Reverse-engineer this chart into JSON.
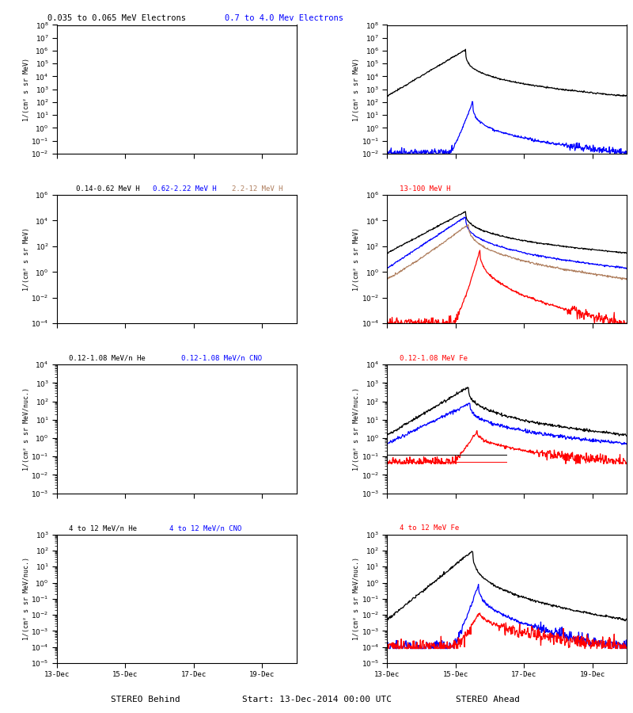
{
  "titles": {
    "r1l_black": "0.035 to 0.065 MeV Electrons",
    "r1l_blue": "0.7 to 4.0 Mev Electrons",
    "r2l_black": "0.14-0.62 MeV H",
    "r2l_blue": "0.62-2.22 MeV H",
    "r2l_tan": "2.2-12 MeV H",
    "r2r_red": "13-100 MeV H",
    "r3l_black": "0.12-1.08 MeV/n He",
    "r3l_blue": "0.12-1.08 MeV/n CNO",
    "r3r_red": "0.12-1.08 MeV Fe",
    "r4l_black": "4 to 12 MeV/n He",
    "r4l_blue": "4 to 12 MeV/n CNO",
    "r4r_red": "4 to 12 MeV Fe"
  },
  "ylabels": {
    "electrons": "1/(cm² s sr MeV)",
    "protons": "1/(cm² s sr MeV)",
    "heavy": "1/(cm² s sr MeV/nuc.)"
  },
  "xlabels": {
    "left": "STEREO Behind",
    "center": "Start: 13-Dec-2014 00:00 UTC",
    "right": "STEREO Ahead"
  },
  "xtick_labels": [
    "13-Dec",
    "15-Dec",
    "17-Dec",
    "19-Dec"
  ],
  "xtick_pos": [
    0,
    48,
    96,
    144
  ],
  "ylims": {
    "r1": [
      -2,
      8
    ],
    "r2": [
      -4,
      6
    ],
    "r3": [
      -3,
      4
    ],
    "r4": [
      -5,
      3
    ]
  },
  "colors": {
    "black": "#000000",
    "blue": "#0000ff",
    "red": "#ff0000",
    "tan": "#b08060"
  },
  "font_mono": true,
  "bg": "#ffffff"
}
